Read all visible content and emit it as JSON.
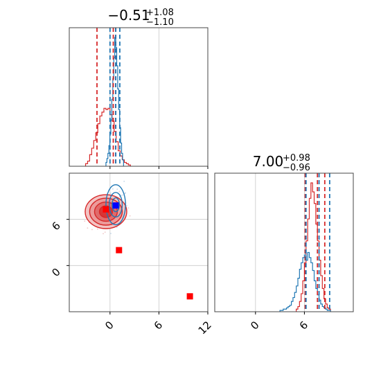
{
  "chart_data": {
    "type": "corner",
    "parameters": [
      {
        "title": {
          "median": "−0.51",
          "upper": "+1.08",
          "lower": "−1.10"
        }
      },
      {
        "title": {
          "median": "7.00",
          "upper": "+0.98",
          "lower": "−0.96"
        }
      }
    ],
    "axes": {
      "x_param0": {
        "lim": [
          -5,
          12
        ],
        "ticks": [
          0,
          6,
          12
        ],
        "tick_labels": [
          "0",
          "6",
          "12"
        ]
      },
      "x_param1": {
        "lim": [
          -5,
          12
        ],
        "ticks": [
          0,
          6
        ],
        "tick_labels": [
          "0",
          "6"
        ]
      },
      "y_param1": {
        "lim": [
          -6,
          12
        ],
        "ticks": [
          0,
          6
        ],
        "tick_labels": [
          "0",
          "6"
        ]
      },
      "grid": true
    },
    "series": [
      {
        "color": "#d62728",
        "param0_quantiles": [
          -1.6,
          0.4,
          0.7
        ],
        "param1_quantiles": [
          6.1,
          7.6,
          8.5
        ],
        "param0_hist": {
          "edges_start": -3.0,
          "bin_width": 0.25,
          "counts": [
            2,
            4,
            9,
            14,
            20,
            26,
            33,
            39,
            42,
            45,
            44,
            45,
            40,
            35,
            27,
            19,
            12,
            8,
            5,
            3,
            2,
            1
          ]
        },
        "param1_hist": {
          "edges_start": 5.0,
          "bin_width": 0.2,
          "counts": [
            2,
            4,
            8,
            14,
            24,
            38,
            55,
            72,
            88,
            100,
            93,
            84,
            68,
            55,
            40,
            28,
            18,
            10,
            6,
            3,
            2
          ]
        },
        "contour_center": [
          -0.5,
          7.0
        ],
        "contour_radii": [
          [
            0.8,
            0.75
          ],
          [
            1.4,
            1.25
          ],
          [
            2.0,
            1.75
          ],
          [
            2.55,
            2.2
          ]
        ]
      },
      {
        "color": "#1f77b4",
        "param0_quantiles": [
          0.0,
          0.7,
          1.2
        ],
        "param1_quantiles": [
          6.2,
          7.8,
          9.1
        ],
        "param0_hist": {
          "edges_start": -0.5,
          "bin_width": 0.12,
          "counts": [
            3,
            6,
            10,
            16,
            25,
            36,
            52,
            68,
            84,
            100,
            92,
            78,
            60,
            44,
            30,
            18,
            10,
            5
          ]
        },
        "param1_hist": {
          "edges_start": 3.0,
          "bin_width": 0.2,
          "counts": [
            1,
            1,
            2,
            2,
            3,
            4,
            5,
            8,
            11,
            15,
            20,
            26,
            33,
            38,
            42,
            44,
            40,
            46,
            42,
            38,
            32,
            24,
            18,
            13,
            9,
            6,
            4,
            3,
            2,
            1,
            1
          ]
        },
        "contour_center": [
          0.7,
          7.9
        ],
        "contour_radii": [
          [
            0.45,
            0.9
          ],
          [
            0.8,
            1.6
          ],
          [
            1.2,
            2.6
          ]
        ]
      }
    ],
    "truth_markers": [
      {
        "x": -0.5,
        "y": 7.3,
        "color": "#ff0000"
      },
      {
        "x": 0.7,
        "y": 7.8,
        "color": "#0000ff"
      },
      {
        "x": 1.1,
        "y": 2.0,
        "color": "#ff0000"
      },
      {
        "x": 9.8,
        "y": -4.0,
        "color": "#ff0000"
      }
    ]
  }
}
